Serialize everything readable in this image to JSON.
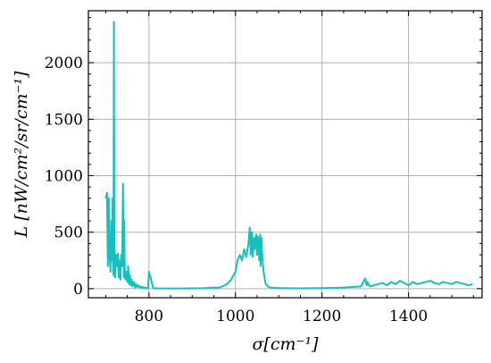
{
  "chart_data": {
    "type": "line",
    "title": "",
    "xlabel": "σ[cm⁻¹]",
    "ylabel": "L [nW/cm²/sr/cm⁻¹]",
    "xlim": [
      660,
      1570
    ],
    "ylim": [
      -80,
      2460
    ],
    "xticks": [
      800,
      1000,
      1200,
      1400
    ],
    "xtick_labels": [
      "800",
      "1000",
      "1200",
      "1400"
    ],
    "yticks": [
      0,
      500,
      1000,
      1500,
      2000
    ],
    "ytick_labels": [
      "0",
      "500",
      "1000",
      "1500",
      "2000"
    ],
    "grid": true,
    "line_color": "#17bfbf",
    "series": [
      {
        "name": "",
        "x": [
          700,
          703,
          705,
          707,
          709,
          711,
          713,
          715,
          716,
          718,
          719,
          720,
          721,
          722,
          724,
          726,
          728,
          730,
          732,
          734,
          736,
          738,
          740,
          742,
          743,
          744,
          746,
          748,
          750,
          752,
          754,
          756,
          758,
          760,
          762,
          765,
          768,
          770,
          772,
          775,
          778,
          780,
          783,
          785,
          788,
          790,
          792,
          795,
          798,
          800,
          810,
          820,
          850,
          880,
          900,
          930,
          950,
          960,
          970,
          980,
          990,
          1000,
          1005,
          1010,
          1015,
          1020,
          1025,
          1030,
          1033,
          1035,
          1038,
          1040,
          1043,
          1045,
          1048,
          1050,
          1052,
          1055,
          1057,
          1058,
          1060,
          1062,
          1065,
          1068,
          1070,
          1075,
          1080,
          1090,
          1100,
          1110,
          1120,
          1150,
          1200,
          1250,
          1290,
          1300,
          1303,
          1305,
          1310,
          1320,
          1330,
          1340,
          1350,
          1360,
          1370,
          1380,
          1390,
          1400,
          1410,
          1420,
          1430,
          1440,
          1450,
          1460,
          1470,
          1480,
          1490,
          1500,
          1510,
          1520,
          1530,
          1540,
          1548
        ],
        "y": [
          800,
          850,
          200,
          800,
          300,
          150,
          600,
          250,
          800,
          120,
          2360,
          400,
          150,
          100,
          300,
          200,
          310,
          100,
          250,
          80,
          300,
          200,
          930,
          100,
          600,
          150,
          80,
          150,
          60,
          200,
          40,
          120,
          30,
          80,
          20,
          60,
          10,
          40,
          15,
          30,
          10,
          20,
          8,
          15,
          5,
          10,
          8,
          5,
          3,
          150,
          5,
          3,
          2,
          2,
          3,
          5,
          10,
          8,
          20,
          40,
          80,
          150,
          250,
          300,
          250,
          350,
          280,
          400,
          540,
          300,
          500,
          280,
          450,
          350,
          480,
          300,
          460,
          250,
          480,
          200,
          450,
          280,
          150,
          80,
          40,
          20,
          10,
          8,
          5,
          5,
          4,
          3,
          5,
          10,
          20,
          90,
          30,
          60,
          20,
          30,
          40,
          50,
          30,
          60,
          40,
          70,
          50,
          30,
          60,
          40,
          50,
          60,
          70,
          50,
          40,
          60,
          50,
          40,
          60,
          50,
          40,
          30,
          40
        ]
      }
    ]
  }
}
